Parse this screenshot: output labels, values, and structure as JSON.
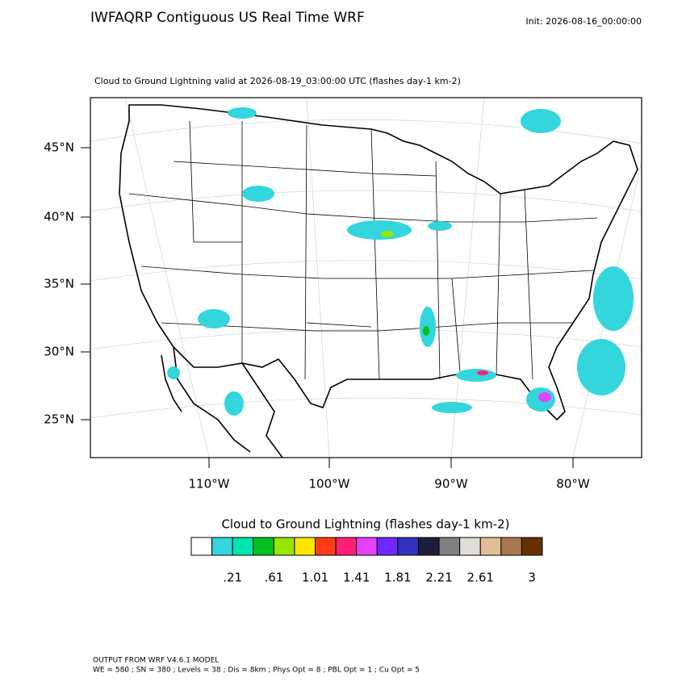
{
  "header": {
    "title": "IWFAQRP Contiguous US Real Time WRF",
    "init": "Init: 2026-08-16_00:00:00"
  },
  "plot": {
    "subtitle": "Cloud to Ground Lightning valid at 2026-08-19_03:00:00 UTC   (flashes day-1 km-2)",
    "lat_labels": [
      "45°N",
      "40°N",
      "35°N",
      "30°N",
      "25°N"
    ],
    "lon_labels": [
      "110°W",
      "100°W",
      "90°W",
      "80°W"
    ]
  },
  "colorbar": {
    "title": "Cloud to Ground Lightning  (flashes day-1 km-2)",
    "colors": [
      "#ffffff",
      "#33d6dc",
      "#00e6b0",
      "#00c020",
      "#96e600",
      "#ffe600",
      "#ff3c14",
      "#ff1e78",
      "#e640ff",
      "#6e28ff",
      "#3232c0",
      "#1e1e3c",
      "#808080",
      "#e0ddd8",
      "#e2be96",
      "#aa7850",
      "#643200"
    ],
    "labels": [
      ".21",
      ".61",
      "1.01",
      "1.41",
      "1.81",
      "2.21",
      "2.61",
      "3"
    ]
  },
  "footer": {
    "line1": "OUTPUT FROM WRF V4.6.1 MODEL",
    "line2": "WE = 580 ; SN = 380 ; Levels = 38 ; Dis = 8km ; Phys Opt = 8 ; PBL Opt = 1 ; Cu Opt = 5"
  }
}
